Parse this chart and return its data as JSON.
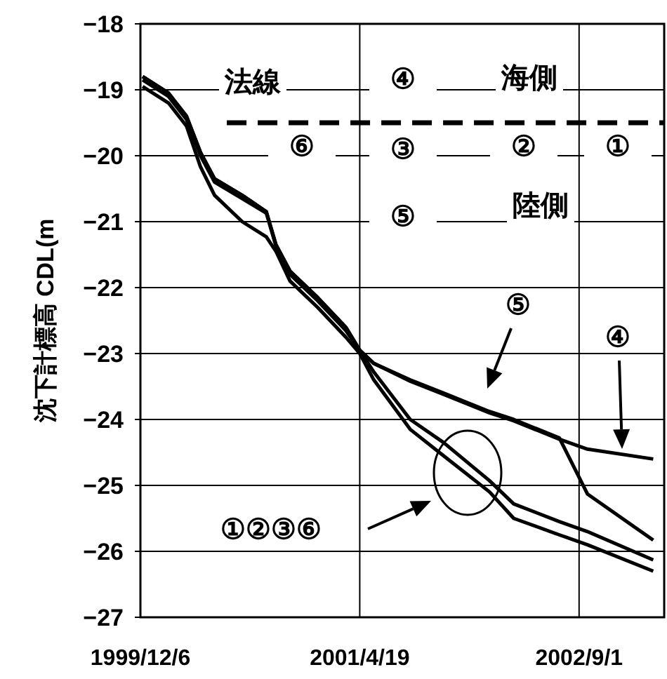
{
  "chart_data": {
    "type": "line",
    "ylabel": "沈下計標高 CDL(m",
    "x": [
      "1999-12-11",
      "2000-02-08",
      "2000-03-20",
      "2000-04-21",
      "2000-05-23",
      "2000-07-25",
      "2000-09-18",
      "2000-10-10",
      "2000-11-11",
      "2001-01-13",
      "2001-03-18",
      "2001-04-19",
      "2001-05-21",
      "2001-08-12",
      "2001-10-27",
      "2002-02-09",
      "2002-04-05",
      "2002-07-18",
      "2002-09-20",
      "2003-02-17"
    ],
    "series": [
      {
        "color": "#000000",
        "values": [
          -18.85,
          -19.1,
          -19.45,
          -20.0,
          -20.4,
          -20.65,
          -20.87,
          -21.37,
          -21.8,
          -22.2,
          -22.65,
          -22.95,
          -23.28,
          -24.0,
          -24.35,
          -24.93,
          -25.28,
          -25.55,
          -25.7,
          -26.13
        ]
      },
      {
        "color": "#000000",
        "values": [
          -18.95,
          -19.2,
          -19.55,
          -20.17,
          -20.6,
          -21.0,
          -21.23,
          -21.45,
          -21.9,
          -22.3,
          -22.75,
          -23.0,
          -23.4,
          -24.15,
          -24.55,
          -25.1,
          -25.5,
          -25.75,
          -25.9,
          -26.3
        ]
      },
      {
        "color": "#000000",
        "values": [
          -18.8,
          -19.05,
          -19.4,
          -19.95,
          -20.35,
          -20.6,
          -20.85,
          -21.35,
          -21.75,
          -22.15,
          -22.6,
          -22.95,
          -23.15,
          -23.4,
          -23.6,
          -23.88,
          -24.0,
          -24.28,
          -25.13,
          -25.83
        ]
      },
      {
        "color": "#000000",
        "values": [
          -18.8,
          -19.05,
          -19.4,
          -19.95,
          -20.35,
          -20.6,
          -20.85,
          -21.35,
          -21.75,
          -22.15,
          -22.6,
          -22.95,
          -23.15,
          -23.42,
          -23.62,
          -23.9,
          -24.02,
          -24.3,
          -24.45,
          -24.6
        ]
      },
      {
        "color": "#000000",
        "type": "line",
        "line_style": "dashed",
        "x": [
          "2000-06-20",
          "2003-03-14"
        ],
        "values": [
          -19.5,
          -19.5
        ]
      }
    ],
    "xlim": [
      "1999-12-06",
      "2003-03-14"
    ],
    "xticks": [
      {
        "value": "1999-12-06",
        "label": "1999/12/6"
      },
      {
        "value": "2001-04-19",
        "label": "2001/4/19"
      },
      {
        "value": "2002-09-01",
        "label": "2002/9/1"
      }
    ],
    "ylim": [
      -27,
      -18
    ],
    "yticks": [
      -27,
      -26,
      -25,
      -24,
      -23,
      -22,
      -21,
      -20,
      -19,
      -18
    ],
    "grid": true,
    "annotations": [
      "法線",
      "④",
      "海側",
      "⑥",
      "③",
      "②",
      "①",
      "陸側",
      "⑤",
      "⑤",
      "④",
      "①②③⑥"
    ]
  }
}
